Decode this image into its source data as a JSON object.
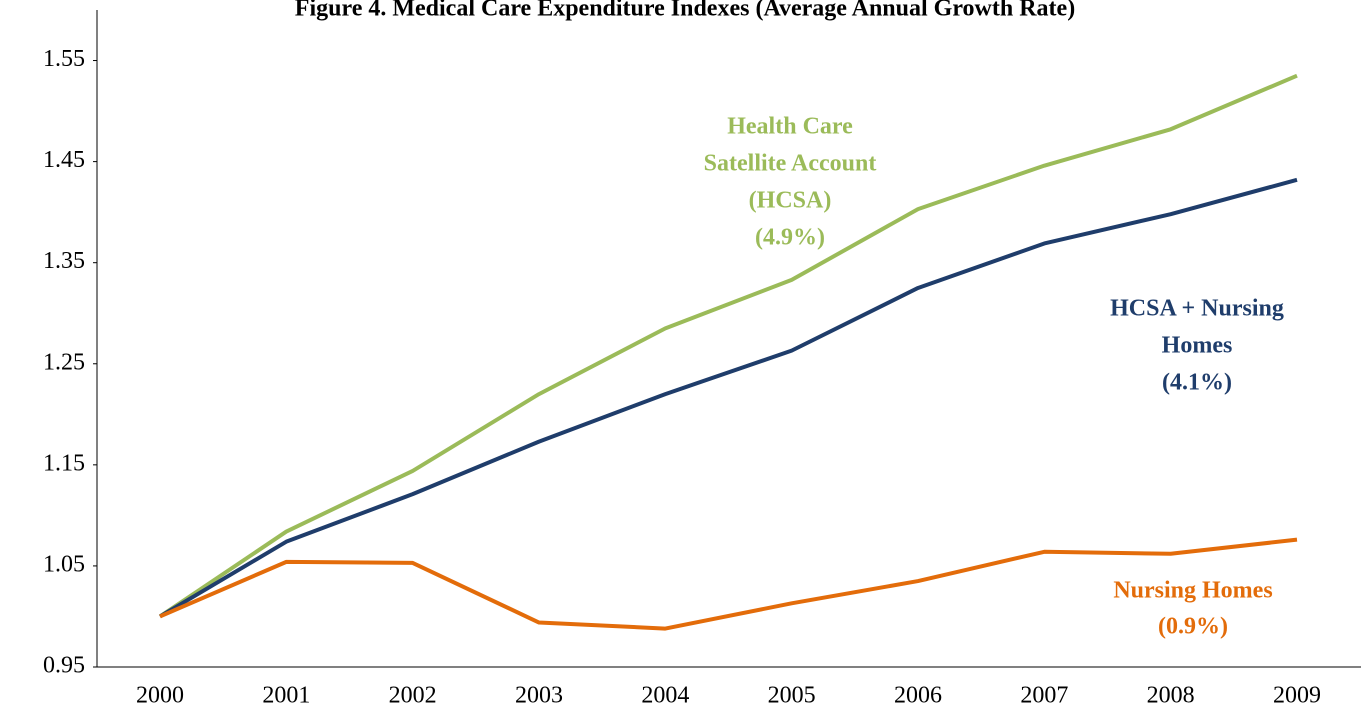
{
  "chart_data": {
    "type": "line",
    "title": "Figure 4. Medical Care Expenditure Indexes (Average Annual Growth Rate)",
    "categories": [
      "2000",
      "2001",
      "2002",
      "2003",
      "2004",
      "2005",
      "2006",
      "2007",
      "2008",
      "2009"
    ],
    "ylim": [
      0.95,
      1.6
    ],
    "yticks": [
      {
        "value": 0.95,
        "label": "0.95"
      },
      {
        "value": 1.05,
        "label": "1.05"
      },
      {
        "value": 1.15,
        "label": "1.15"
      },
      {
        "value": 1.25,
        "label": "1.25"
      },
      {
        "value": 1.35,
        "label": "1.35"
      },
      {
        "value": 1.45,
        "label": "1.45"
      },
      {
        "value": 1.55,
        "label": "1.55"
      }
    ],
    "grid": false,
    "series": [
      {
        "label": [
          "Health Care",
          "Satellite Account",
          "(HCSA)",
          "(4.9%)"
        ],
        "color": "#9bbb59",
        "values": [
          1.0,
          1.084,
          1.144,
          1.22,
          1.285,
          1.333,
          1.403,
          1.446,
          1.482,
          1.535
        ]
      },
      {
        "label": [
          "HCSA + Nursing",
          "Homes",
          "(4.1%)"
        ],
        "color": "#1f3d6b",
        "values": [
          1.0,
          1.074,
          1.121,
          1.173,
          1.22,
          1.263,
          1.325,
          1.369,
          1.398,
          1.432
        ]
      },
      {
        "label": [
          "Nursing Homes",
          "(0.9%)"
        ],
        "color": "#e36c0a",
        "values": [
          1.0,
          1.054,
          1.053,
          0.994,
          0.988,
          1.013,
          1.035,
          1.064,
          1.062,
          1.076
        ]
      }
    ]
  }
}
